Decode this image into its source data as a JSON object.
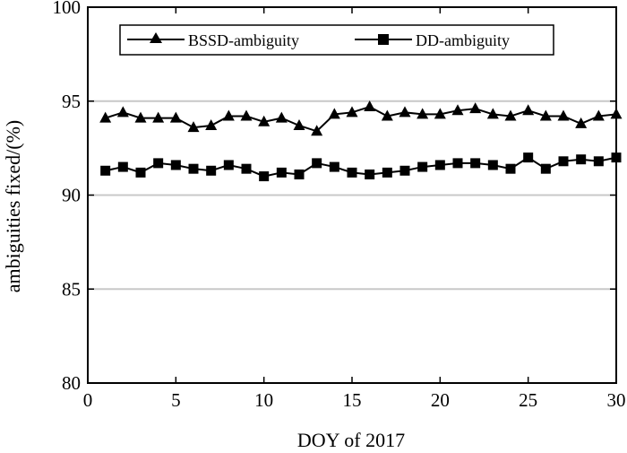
{
  "chart_data": {
    "type": "line",
    "title": "",
    "xlabel": "DOY of  2017",
    "ylabel": "ambiguities fixed/(%)",
    "xlim": [
      0,
      30
    ],
    "ylim": [
      80,
      100
    ],
    "xticks": [
      0,
      5,
      10,
      15,
      20,
      25,
      30
    ],
    "yticks": [
      80,
      85,
      90,
      95,
      100
    ],
    "grid": "horizontal",
    "legend_position": "top",
    "x": [
      1,
      2,
      3,
      4,
      5,
      6,
      7,
      8,
      9,
      10,
      11,
      12,
      13,
      14,
      15,
      16,
      17,
      18,
      19,
      20,
      21,
      22,
      23,
      24,
      25,
      26,
      27,
      28,
      29,
      30
    ],
    "series": [
      {
        "name": "BSSD-ambiguity",
        "marker": "triangle",
        "color": "#000000",
        "values": [
          94.1,
          94.4,
          94.1,
          94.1,
          94.1,
          93.6,
          93.7,
          94.2,
          94.2,
          93.9,
          94.1,
          93.7,
          93.4,
          94.3,
          94.4,
          94.7,
          94.2,
          94.4,
          94.3,
          94.3,
          94.5,
          94.6,
          94.3,
          94.2,
          94.5,
          94.2,
          94.2,
          93.8,
          94.2,
          94.3
        ]
      },
      {
        "name": "DD-ambiguity",
        "marker": "square",
        "color": "#000000",
        "values": [
          91.3,
          91.5,
          91.2,
          91.7,
          91.6,
          91.4,
          91.3,
          91.6,
          91.4,
          91.0,
          91.2,
          91.1,
          91.7,
          91.5,
          91.2,
          91.1,
          91.2,
          91.3,
          91.5,
          91.6,
          91.7,
          91.7,
          91.6,
          91.4,
          92.0,
          91.4,
          91.8,
          91.9,
          91.8,
          92.0
        ]
      }
    ]
  }
}
